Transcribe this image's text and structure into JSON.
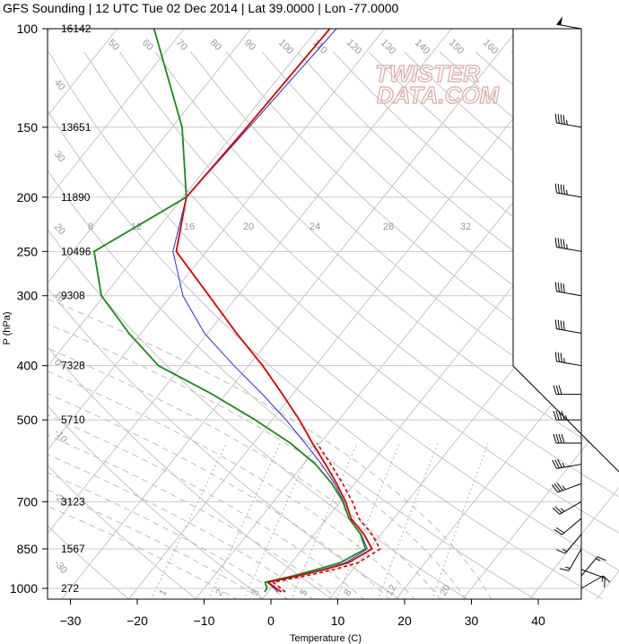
{
  "title": "GFS Sounding | 12 UTC Tue 02 Dec 2014 | Lat 39.0000 | Lon -77.0000",
  "watermark": {
    "line1": "TWISTER",
    "line2": "DATA.COM"
  },
  "colors": {
    "temperature": "#dd0000",
    "dewpoint": "#1a8a1a",
    "parcel": "#2a2ad8",
    "virtual_temp": "#cc0000"
  },
  "chart_data": {
    "type": "line",
    "chart_kind": "skew-T log-P",
    "xlabel": "Temperature (C)",
    "ylabel": "P (hPa)",
    "xlim": [
      -34,
      47
    ],
    "ylim": [
      1050,
      100
    ],
    "y_scale": "log",
    "grid": true,
    "x_ticks": [
      -30,
      -20,
      -10,
      0,
      10,
      20,
      30,
      40
    ],
    "pressure_ticks": [
      {
        "p": 100,
        "label": "100",
        "height": "16142"
      },
      {
        "p": 150,
        "label": "150",
        "height": "13651"
      },
      {
        "p": 200,
        "label": "200",
        "height": "11890"
      },
      {
        "p": 250,
        "label": "250",
        "height": "10496"
      },
      {
        "p": 300,
        "label": "300",
        "height": "9308"
      },
      {
        "p": 400,
        "label": "400",
        "height": "7328"
      },
      {
        "p": 500,
        "label": "500",
        "height": "5710"
      },
      {
        "p": 700,
        "label": "700",
        "height": "3123"
      },
      {
        "p": 850,
        "label": "850",
        "height": "1567"
      },
      {
        "p": 1000,
        "label": "1000",
        "height": "272"
      }
    ],
    "theta_e_labels": [
      "8",
      "12",
      "16",
      "20",
      "24",
      "28",
      "32"
    ],
    "dry_adiabat_labels": [
      "50",
      "60",
      "70",
      "80",
      "90",
      "100",
      "110",
      "120",
      "130",
      "140",
      "150",
      "160"
    ],
    "isotherm_labels": [
      "40",
      "30",
      "20",
      "10",
      "0",
      "-10",
      "-20",
      "-30",
      "-40",
      "-50",
      "-60"
    ],
    "right_isotherm_labels": [
      "30",
      "20",
      "10",
      "0",
      "-10",
      "-20",
      "-30"
    ],
    "mixing_ratio_labels": [
      "1",
      "2",
      "3",
      "5",
      "8",
      "12",
      "20"
    ],
    "series": [
      {
        "name": "Temperature",
        "p": [
          1015,
          1000,
          975,
          950,
          925,
          900,
          850,
          800,
          750,
          700,
          650,
          600,
          550,
          500,
          450,
          400,
          350,
          300,
          250,
          200,
          150,
          100
        ],
        "t": [
          2.0,
          0.8,
          -1.2,
          2.5,
          5.8,
          8.5,
          10.4,
          7.4,
          3.6,
          0.8,
          -2.7,
          -6.7,
          -11.2,
          -15.9,
          -21.5,
          -27.9,
          -35.7,
          -44.3,
          -54.5,
          -59.5,
          -58.8,
          -58.2
        ]
      },
      {
        "name": "Dewpoint",
        "p": [
          1015,
          1000,
          975,
          950,
          925,
          900,
          850,
          800,
          750,
          700,
          650,
          600,
          550,
          500,
          450,
          400,
          350,
          300,
          250,
          200,
          150,
          100
        ],
        "t": [
          -0.5,
          -0.6,
          -1.6,
          1.8,
          4.6,
          7.3,
          9.4,
          6.9,
          3.3,
          0.4,
          -3.4,
          -8.2,
          -14.5,
          -22.5,
          -32.0,
          -43.5,
          -51.8,
          -60.4,
          -66.8,
          -59.5,
          -68.5,
          -84.5
        ]
      },
      {
        "name": "Parcel",
        "p": [
          1015,
          1000,
          975,
          950,
          925,
          900,
          850,
          800,
          750,
          700,
          650,
          600,
          550,
          500,
          450,
          400,
          350,
          300,
          250,
          200,
          150,
          100
        ],
        "t": [
          1.5,
          0.5,
          -1.3,
          2.3,
          5.5,
          8.1,
          9.7,
          7.0,
          3.3,
          0.5,
          -3.0,
          -7.3,
          -12.3,
          -17.9,
          -24.5,
          -32.2,
          -40.5,
          -48.2,
          -55.0,
          -59.5,
          -58.5,
          -57.2
        ]
      },
      {
        "name": "Virtual temperature",
        "dashed": true,
        "p": [
          1015,
          1000,
          975,
          950,
          925,
          900,
          850,
          800,
          750,
          700,
          650,
          600,
          550
        ],
        "t": [
          2.6,
          1.5,
          -0.4,
          3.7,
          7.2,
          10.0,
          11.6,
          8.6,
          4.8,
          1.8,
          -1.8,
          -5.9,
          -10.5
        ]
      }
    ],
    "wind_barbs": [
      {
        "p": 100,
        "dir": 280,
        "kt": 50
      },
      {
        "p": 150,
        "dir": 280,
        "kt": 45
      },
      {
        "p": 200,
        "dir": 280,
        "kt": 45
      },
      {
        "p": 250,
        "dir": 280,
        "kt": 45
      },
      {
        "p": 300,
        "dir": 280,
        "kt": 40
      },
      {
        "p": 350,
        "dir": 280,
        "kt": 40
      },
      {
        "p": 400,
        "dir": 280,
        "kt": 35
      },
      {
        "p": 450,
        "dir": 270,
        "kt": 30
      },
      {
        "p": 500,
        "dir": 270,
        "kt": 45
      },
      {
        "p": 550,
        "dir": 270,
        "kt": 40
      },
      {
        "p": 600,
        "dir": 260,
        "kt": 35
      },
      {
        "p": 650,
        "dir": 250,
        "kt": 35
      },
      {
        "p": 700,
        "dir": 240,
        "kt": 25
      },
      {
        "p": 750,
        "dir": 230,
        "kt": 20
      },
      {
        "p": 800,
        "dir": 220,
        "kt": 15
      },
      {
        "p": 850,
        "dir": 210,
        "kt": 15
      },
      {
        "p": 925,
        "dir": 110,
        "kt": 15
      },
      {
        "p": 950,
        "dir": 40,
        "kt": 15
      },
      {
        "p": 1000,
        "dir": 60,
        "kt": 10
      }
    ]
  }
}
